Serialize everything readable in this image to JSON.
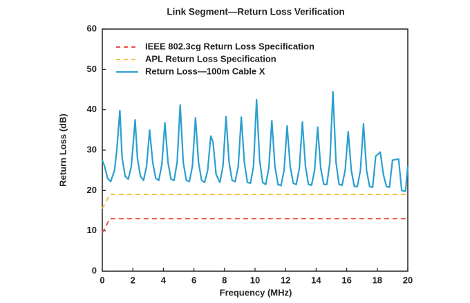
{
  "chart_data": {
    "type": "line",
    "title": "Link Segment—Return Loss Verification",
    "x_label": "Frequency (MHz)",
    "y_label": "Return Loss (dB)",
    "xlim": [
      0,
      20
    ],
    "ylim": [
      0,
      60
    ],
    "xticks": [
      0,
      2,
      4,
      6,
      8,
      10,
      12,
      14,
      16,
      18,
      20
    ],
    "yticks": [
      0,
      10,
      20,
      30,
      40,
      50,
      60
    ],
    "grid": false,
    "legend": "upper left",
    "series": [
      {
        "name": "IEEE 802.3cg Return Loss Specification",
        "color": "#e8534a",
        "dashed": true,
        "x": [
          0,
          0.5,
          20
        ],
        "values": [
          9.5,
          13,
          13
        ]
      },
      {
        "name": "APL Return Loss Specification",
        "color": "#f5c243",
        "dashed": true,
        "x": [
          0,
          0.5,
          20
        ],
        "values": [
          15.5,
          19,
          19
        ]
      },
      {
        "name": "Return Loss—100m Cable X",
        "color": "#2a9fd0",
        "dashed": false,
        "x": [
          0,
          0.15,
          0.35,
          0.55,
          0.8,
          0.95,
          1.15,
          1.3,
          1.5,
          1.7,
          1.9,
          2.15,
          2.3,
          2.5,
          2.7,
          2.9,
          3.1,
          3.3,
          3.5,
          3.7,
          3.9,
          4.1,
          4.3,
          4.5,
          4.7,
          4.9,
          5.1,
          5.3,
          5.5,
          5.7,
          5.9,
          6.1,
          6.3,
          6.5,
          6.7,
          6.9,
          7.1,
          7.25,
          7.45,
          7.7,
          7.9,
          8.1,
          8.3,
          8.5,
          8.7,
          8.9,
          9.1,
          9.3,
          9.5,
          9.7,
          9.9,
          10.1,
          10.3,
          10.5,
          10.7,
          10.9,
          11.1,
          11.3,
          11.5,
          11.7,
          11.9,
          12.1,
          12.3,
          12.5,
          12.7,
          12.9,
          13.1,
          13.3,
          13.5,
          13.7,
          13.9,
          14.1,
          14.3,
          14.5,
          14.7,
          14.9,
          15.1,
          15.3,
          15.5,
          15.7,
          15.9,
          16.1,
          16.3,
          16.5,
          16.7,
          16.9,
          17.1,
          17.3,
          17.5,
          17.7,
          17.9,
          18.2,
          18.4,
          18.6,
          18.8,
          19.0,
          19.4,
          19.6,
          19.85,
          20
        ],
        "values": [
          27.5,
          26,
          23,
          22.2,
          25,
          30,
          39.8,
          28,
          23.5,
          22.8,
          26,
          37.5,
          28,
          23.5,
          22.5,
          26,
          35,
          27,
          23,
          22.5,
          26.5,
          36.8,
          27,
          22.8,
          22.5,
          27,
          41.2,
          27,
          22.5,
          22.2,
          26,
          38,
          27,
          22.5,
          22,
          25,
          33.5,
          32,
          24,
          22,
          26,
          38.3,
          27,
          22.5,
          22.2,
          26,
          38.2,
          27,
          22,
          21.8,
          26,
          42.5,
          27.5,
          22,
          21.5,
          25.5,
          37.3,
          26,
          21.5,
          21.2,
          25,
          36,
          26,
          21.8,
          21.5,
          25.5,
          37,
          26,
          21.5,
          21.3,
          25,
          35.7,
          25.5,
          21.5,
          21.5,
          27,
          44.5,
          27,
          21.5,
          21.3,
          25,
          34.6,
          25,
          21,
          21,
          25,
          36.5,
          25,
          21,
          20.8,
          28.5,
          29.5,
          24,
          21,
          20.8,
          27.5,
          27.8,
          20,
          19.8,
          26
        ]
      }
    ]
  }
}
